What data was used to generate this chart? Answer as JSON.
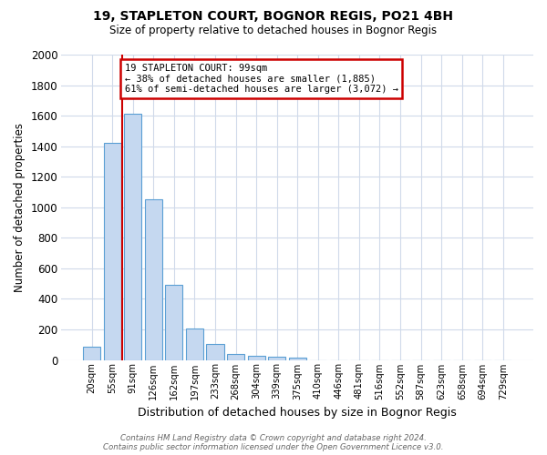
{
  "title_line1": "19, STAPLETON COURT, BOGNOR REGIS, PO21 4BH",
  "title_line2": "Size of property relative to detached houses in Bognor Regis",
  "xlabel": "Distribution of detached houses by size in Bognor Regis",
  "ylabel": "Number of detached properties",
  "footnote": "Contains HM Land Registry data © Crown copyright and database right 2024.\nContains public sector information licensed under the Open Government Licence v3.0.",
  "bar_labels": [
    "20sqm",
    "55sqm",
    "91sqm",
    "126sqm",
    "162sqm",
    "197sqm",
    "233sqm",
    "268sqm",
    "304sqm",
    "339sqm",
    "375sqm",
    "410sqm",
    "446sqm",
    "481sqm",
    "516sqm",
    "552sqm",
    "587sqm",
    "623sqm",
    "658sqm",
    "694sqm",
    "729sqm"
  ],
  "bar_values": [
    85,
    1420,
    1610,
    1050,
    490,
    205,
    105,
    40,
    28,
    22,
    15,
    0,
    0,
    0,
    0,
    0,
    0,
    0,
    0,
    0,
    0
  ],
  "bar_color": "#c5d8f0",
  "bar_edge_color": "#5a9fd4",
  "plot_bg_color": "#ffffff",
  "fig_bg_color": "#ffffff",
  "grid_color": "#d0daea",
  "annotation_text": "19 STAPLETON COURT: 99sqm\n← 38% of detached houses are smaller (1,885)\n61% of semi-detached houses are larger (3,072) →",
  "annotation_box_facecolor": "#ffffff",
  "annotation_box_edgecolor": "#cc0000",
  "red_line_x": 1.5,
  "ylim_max": 2000,
  "yticks": [
    0,
    200,
    400,
    600,
    800,
    1000,
    1200,
    1400,
    1600,
    1800,
    2000
  ]
}
